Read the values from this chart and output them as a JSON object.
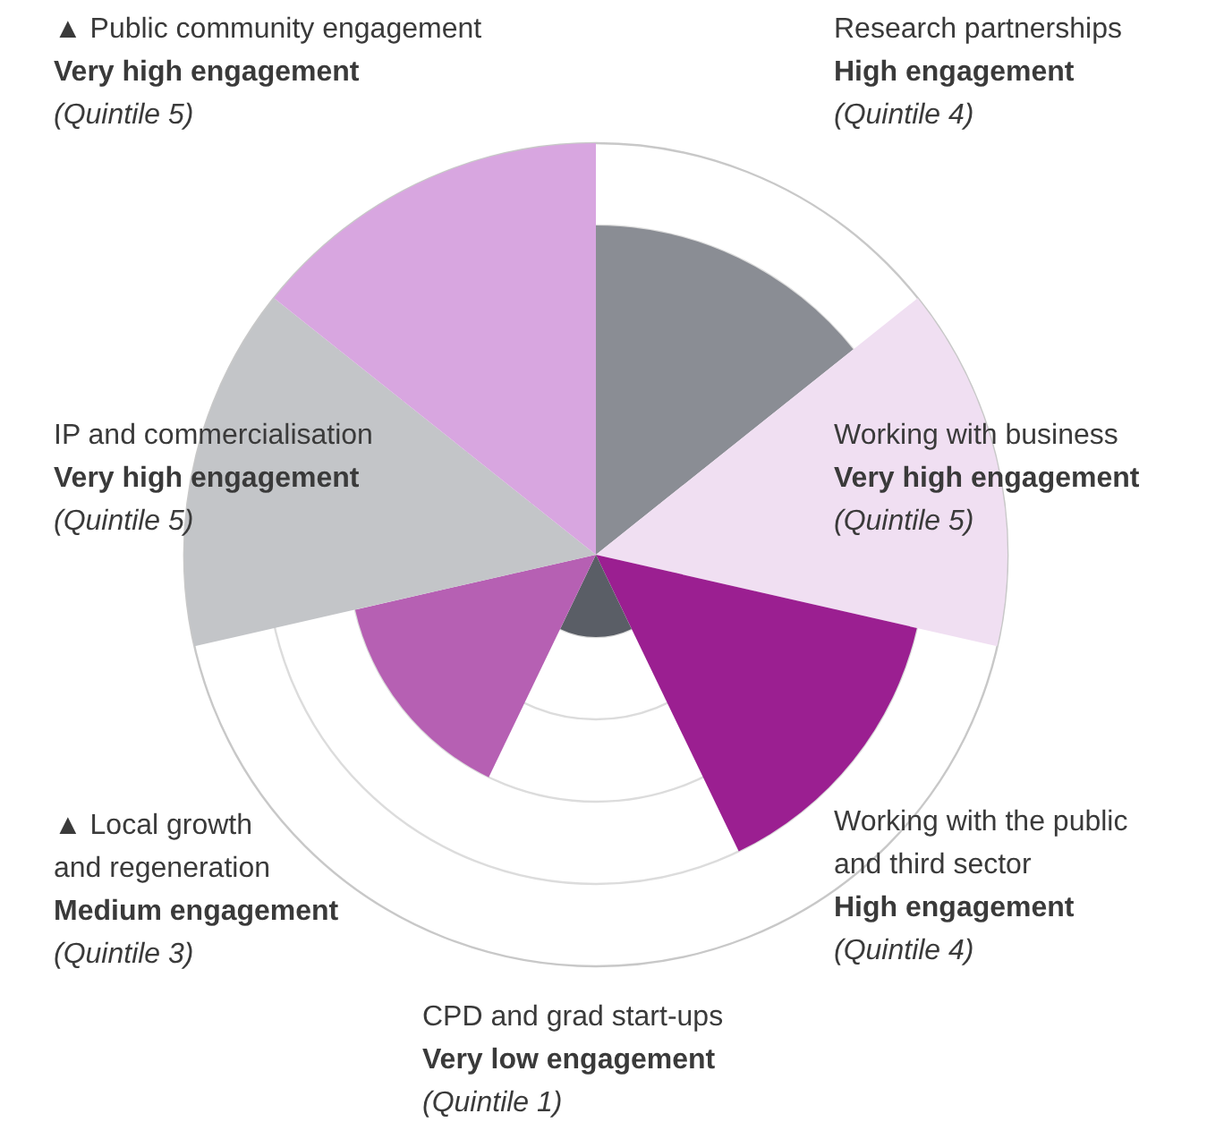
{
  "chart_data": {
    "type": "other",
    "categories": [
      "Research partnerships",
      "Working with business",
      "Working with the public\nand third sector",
      "CPD and grad start-ups",
      "▲ Local growth\nand regeneration",
      "IP and commercialisation",
      "▲ Public community engagement"
    ],
    "values": [
      4,
      5,
      4,
      1,
      3,
      5,
      5
    ],
    "colors": [
      "#8a8d94",
      "#f0dff2",
      "#9b1f91",
      "#5a5e66",
      "#b660b3",
      "#c3c5c8",
      "#d8a6e0"
    ],
    "value_labels": [
      "(Quintile 4)",
      "(Quintile 5)",
      "(Quintile 4)",
      "(Quintile 1)",
      "(Quintile 3)",
      "(Quintile 5)",
      "(Quintile 5)"
    ],
    "annotations": [
      "High engagement",
      "Very high engagement",
      "High engagement",
      "Very low engagement",
      "Medium engagement",
      "Very high engagement",
      "Very high engagement"
    ]
  }
}
